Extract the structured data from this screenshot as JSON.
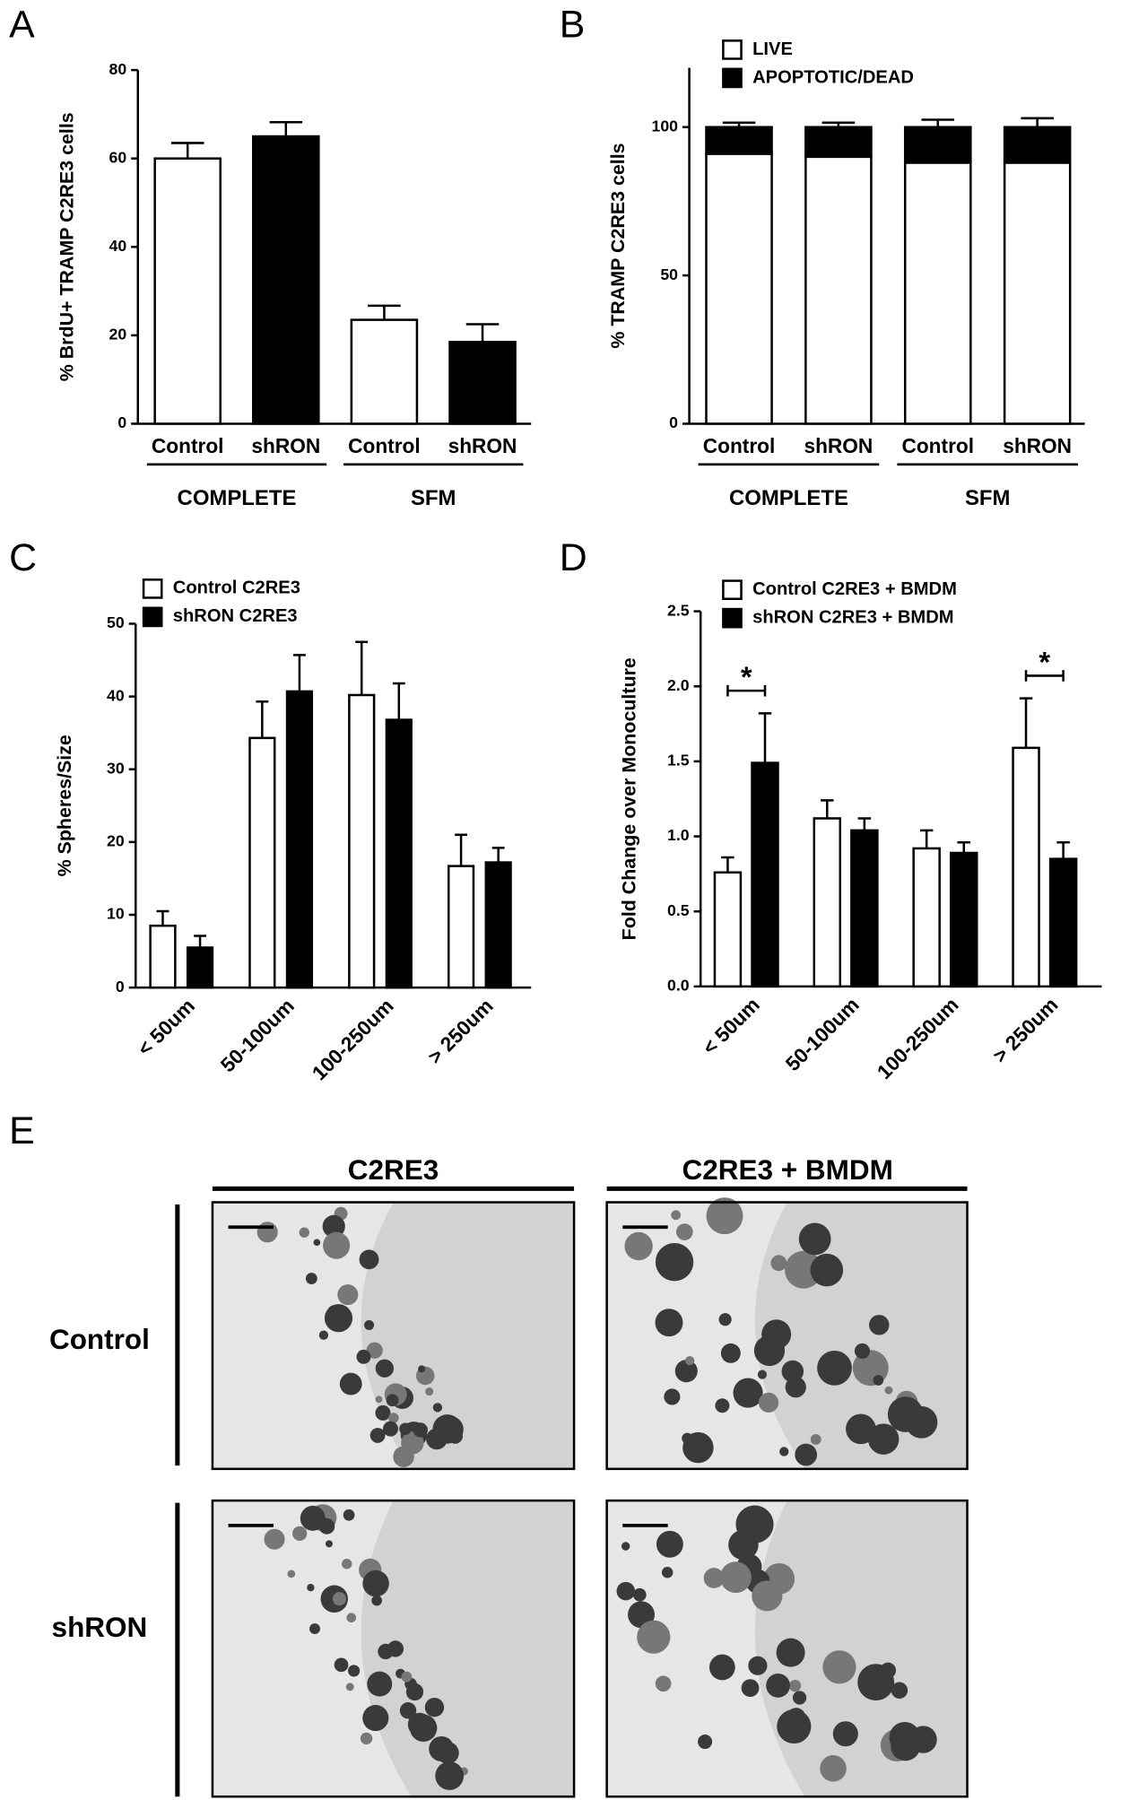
{
  "chart_data": [
    {
      "type": "bar",
      "panel": "A",
      "ylabel": "% BrdU+ TRAMP C2RE3 cells",
      "categories": [
        "Control",
        "shRON",
        "Control",
        "shRON"
      ],
      "groups": [
        "COMPLETE",
        "SFM"
      ],
      "values": [
        60,
        65,
        23.5,
        18.5
      ],
      "errors": [
        3.5,
        3.2,
        3.2,
        4
      ],
      "colors": [
        "#ffffff",
        "#000000",
        "#ffffff",
        "#000000"
      ],
      "ylim": [
        0,
        80
      ],
      "yticks": [
        0,
        20,
        40,
        60,
        80
      ]
    },
    {
      "type": "stacked_bar",
      "panel": "B",
      "ylabel": "% TRAMP C2RE3 cells",
      "categories": [
        "Control",
        "shRON",
        "Control",
        "shRON"
      ],
      "groups": [
        "COMPLETE",
        "SFM"
      ],
      "series": [
        {
          "name": "LIVE",
          "color": "#ffffff",
          "values": [
            91,
            90,
            88,
            88
          ]
        },
        {
          "name": "APOPTOTIC/DEAD",
          "color": "#000000",
          "values": [
            9,
            10,
            12,
            12
          ],
          "errors": [
            1.5,
            1.5,
            2.5,
            3
          ]
        }
      ],
      "ylim": [
        0,
        120
      ],
      "yticks": [
        0,
        50,
        100
      ],
      "legend": "top-left"
    },
    {
      "type": "grouped_bar",
      "panel": "C",
      "ylabel": "% Spheres/Size",
      "categories": [
        "< 50um",
        "50-100um",
        "100-250um",
        "> 250um"
      ],
      "series": [
        {
          "name": "Control C2RE3",
          "color": "#ffffff",
          "values": [
            8.5,
            34.3,
            40.2,
            16.7
          ],
          "errors": [
            2,
            5,
            7.3,
            4.3
          ]
        },
        {
          "name": "shRON C2RE3",
          "color": "#000000",
          "values": [
            5.5,
            40.7,
            36.8,
            17.2
          ],
          "errors": [
            1.6,
            5,
            5,
            2
          ]
        }
      ],
      "ylim": [
        0,
        50
      ],
      "yticks": [
        0,
        10,
        20,
        30,
        40,
        50
      ],
      "legend": "top-left"
    },
    {
      "type": "grouped_bar",
      "panel": "D",
      "ylabel": "Fold Change over Monoculture",
      "categories": [
        "< 50um",
        "50-100um",
        "100-250um",
        "> 250um"
      ],
      "series": [
        {
          "name": "Control C2RE3 + BMDM",
          "color": "#ffffff",
          "values": [
            0.76,
            1.12,
            0.92,
            1.59
          ],
          "errors": [
            0.1,
            0.12,
            0.12,
            0.33
          ]
        },
        {
          "name": "shRON C2RE3 + BMDM",
          "color": "#000000",
          "values": [
            1.49,
            1.04,
            0.89,
            0.85
          ],
          "errors": [
            0.33,
            0.08,
            0.07,
            0.11
          ]
        }
      ],
      "ylim": [
        0,
        2.5
      ],
      "yticks": [
        {
          "value": 0,
          "label": "0.0"
        },
        0.5,
        {
          "value": 1,
          "label": "1.0"
        },
        1.5,
        {
          "value": 2,
          "label": "2.0"
        },
        2.5
      ],
      "annotations": [
        {
          "text": "*",
          "category": "< 50um"
        },
        {
          "text": "*",
          "category": "> 250um"
        }
      ],
      "legend": "top-left"
    }
  ],
  "micrographs": {
    "panel": "E",
    "columns": [
      "C2RE3",
      "C2RE3 + BMDM"
    ],
    "rows": [
      "Control",
      "shRON"
    ]
  }
}
